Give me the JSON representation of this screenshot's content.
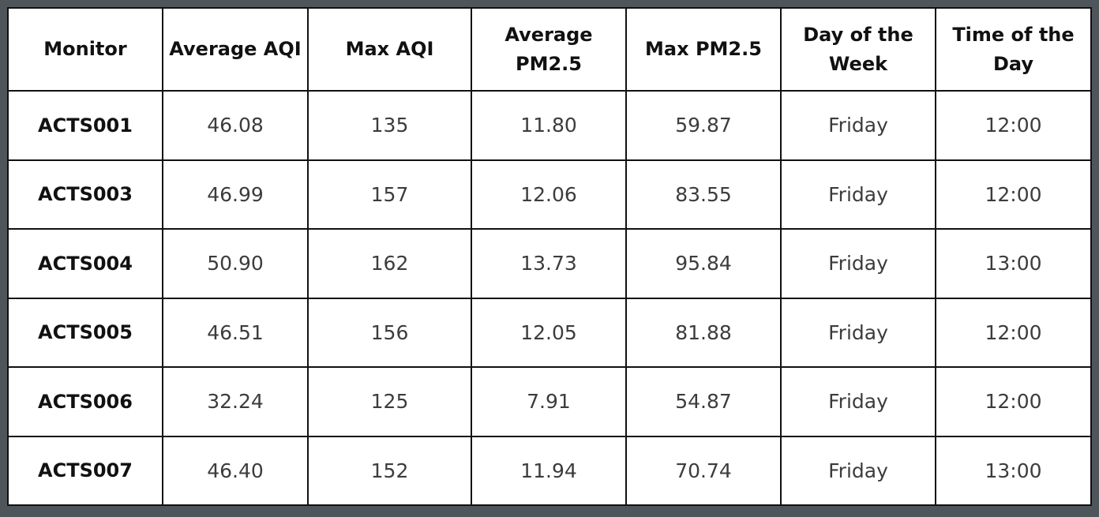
{
  "table": {
    "headers": [
      "Monitor",
      "Average AQI",
      "Max AQI",
      "Average PM2.5",
      "Max PM2.5",
      "Day of the Week",
      "Time of the Day"
    ],
    "rows": [
      [
        "ACTS001",
        "46.08",
        "135",
        "11.80",
        "59.87",
        "Friday",
        "12:00"
      ],
      [
        "ACTS003",
        "46.99",
        "157",
        "12.06",
        "83.55",
        "Friday",
        "12:00"
      ],
      [
        "ACTS004",
        "50.90",
        "162",
        "13.73",
        "95.84",
        "Friday",
        "13:00"
      ],
      [
        "ACTS005",
        "46.51",
        "156",
        "12.05",
        "81.88",
        "Friday",
        "12:00"
      ],
      [
        "ACTS006",
        "32.24",
        "125",
        "7.91",
        "54.87",
        "Friday",
        "12:00"
      ],
      [
        "ACTS007",
        "46.40",
        "152",
        "11.94",
        "70.74",
        "Friday",
        "13:00"
      ]
    ]
  },
  "colors": {
    "background": "#4f565b",
    "table_background": "#ffffff",
    "border": "#111111",
    "text": "#111111",
    "value_text": "#3c3c3c"
  }
}
